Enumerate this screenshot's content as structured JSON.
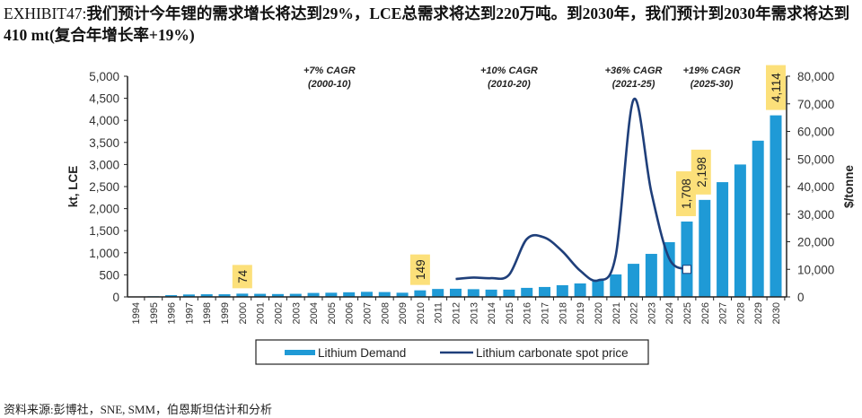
{
  "title": {
    "prefix": "EXHIBIT47:",
    "text": "我们预计今年锂的需求增长将达到29%，LCE总需求将达到220万吨。到2030年，我们预计到2030年需求将达到410 mt(复合年增长率+19%)"
  },
  "footer": "资料来源:彭博社，SNE, SMM，伯恩斯坦估计和分析",
  "chart_data": {
    "type": "bar+line",
    "categories": [
      "1994",
      "1995",
      "1996",
      "1997",
      "1998",
      "1999",
      "2000",
      "2001",
      "2002",
      "2003",
      "2004",
      "2005",
      "2006",
      "2007",
      "2008",
      "2009",
      "2010",
      "2011",
      "2012",
      "2013",
      "2014",
      "2015",
      "2016",
      "2017",
      "2018",
      "2019",
      "2020",
      "2021",
      "2022",
      "2023",
      "2024",
      "2025",
      "2026",
      "2027",
      "2028",
      "2029",
      "2030"
    ],
    "series": [
      {
        "name": "Lithium Demand",
        "type": "bar",
        "axis": "left",
        "color": "#1F9AD6",
        "values": [
          10,
          15,
          40,
          55,
          60,
          60,
          74,
          70,
          65,
          70,
          90,
          95,
          105,
          115,
          110,
          95,
          149,
          180,
          185,
          175,
          165,
          165,
          205,
          225,
          265,
          305,
          390,
          510,
          750,
          975,
          1240,
          1708,
          2198,
          2600,
          3000,
          3540,
          4114
        ]
      },
      {
        "name": "Lithium carbonate spot price",
        "type": "line",
        "axis": "right",
        "color": "#1F3F7A",
        "x": [
          "2012",
          "2013",
          "2014",
          "2015",
          "2016",
          "2017",
          "2018",
          "2019",
          "2020",
          "2021",
          "2022",
          "2023",
          "2024",
          "2025"
        ],
        "values": [
          6500,
          7000,
          6800,
          8000,
          21000,
          21500,
          16500,
          9500,
          6000,
          15000,
          71500,
          38000,
          14000,
          10000
        ]
      }
    ],
    "data_labels": [
      {
        "category": "2000",
        "text": "74"
      },
      {
        "category": "2010",
        "text": "149"
      },
      {
        "category": "2025",
        "text": "1,708"
      },
      {
        "category": "2026",
        "text": "2,198"
      },
      {
        "category": "2030",
        "text": "4,114"
      }
    ],
    "label_color": "#FCE07A",
    "annotations": [
      {
        "line1": "+7% CAGR",
        "line2": "(2000-10)",
        "category": "2005"
      },
      {
        "line1": "+10% CAGR",
        "line2": "(2010-20)",
        "category": "2015"
      },
      {
        "line1": "+36% CAGR",
        "line2": "(2021-25)",
        "category": "2022"
      },
      {
        "line1": "+19% CAGR",
        "line2": "(2025-30)",
        "category": "2027"
      }
    ],
    "ylabel": "kt, LCE",
    "ylim": [
      0,
      5000
    ],
    "yticks": [
      "0",
      "500",
      "1,000",
      "1,500",
      "2,000",
      "2,500",
      "3,000",
      "3,500",
      "4,000",
      "4,500",
      "5,000"
    ],
    "y2label": "$/tonne",
    "y2lim": [
      0,
      80000
    ],
    "y2ticks": [
      "0",
      "10,000",
      "20,000",
      "30,000",
      "40,000",
      "50,000",
      "60,000",
      "70,000",
      "80,000"
    ],
    "grid": false,
    "legend": "bottom"
  }
}
